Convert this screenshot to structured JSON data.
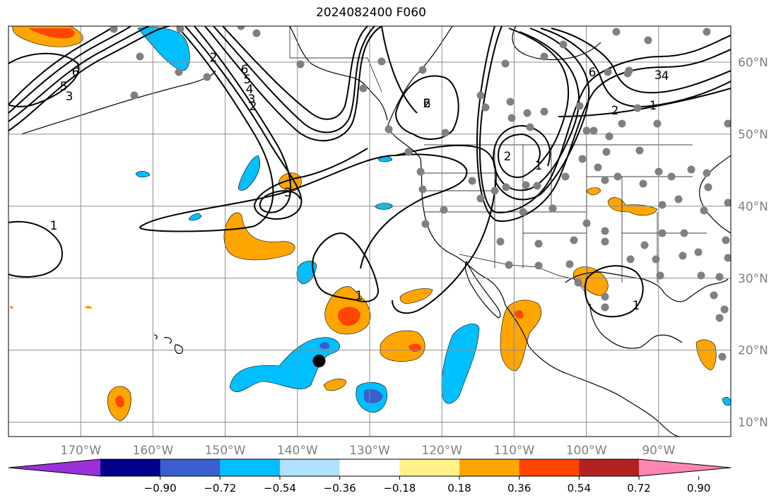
{
  "title": "2024082400 F060",
  "map": {
    "lon_range": [
      -180,
      -80
    ],
    "lat_range": [
      8,
      65
    ],
    "lon_ticks": [
      {
        "value": -170,
        "label": "170°W"
      },
      {
        "value": -160,
        "label": "160°W"
      },
      {
        "value": -150,
        "label": "150°W"
      },
      {
        "value": -140,
        "label": "140°W"
      },
      {
        "value": -130,
        "label": "130°W"
      },
      {
        "value": -120,
        "label": "120°W"
      },
      {
        "value": -110,
        "label": "110°W"
      },
      {
        "value": -100,
        "label": "100°W"
      },
      {
        "value": -90,
        "label": "90°W"
      }
    ],
    "lat_ticks": [
      {
        "value": 60,
        "label": "60°N"
      },
      {
        "value": 50,
        "label": "50°N"
      },
      {
        "value": 40,
        "label": "40°N"
      },
      {
        "value": 30,
        "label": "30°N"
      },
      {
        "value": 20,
        "label": "20°N"
      },
      {
        "value": 10,
        "label": "10°N"
      }
    ],
    "contour_labels": [
      "6",
      "5",
      "3",
      "2",
      "6",
      "5",
      "4",
      "3",
      "2",
      "3",
      "1",
      "2",
      "1",
      "2",
      "1",
      "6",
      "3",
      "2",
      "1",
      "4",
      "6",
      "1",
      "2"
    ],
    "marker": {
      "lon": -137,
      "lat": 18.5
    }
  },
  "colorbar": {
    "colors": [
      "#9b30d9",
      "#00008b",
      "#3a5fcd",
      "#00bfff",
      "#b0e2ff",
      "#ffffff",
      "#fff08a",
      "#ffa500",
      "#ff4500",
      "#b22222",
      "#ff85b2"
    ],
    "tick_labels": [
      "−0.90",
      "−0.72",
      "−0.54",
      "−0.36",
      "−0.18",
      "0.18",
      "0.36",
      "0.54",
      "0.72",
      "0.90"
    ]
  }
}
